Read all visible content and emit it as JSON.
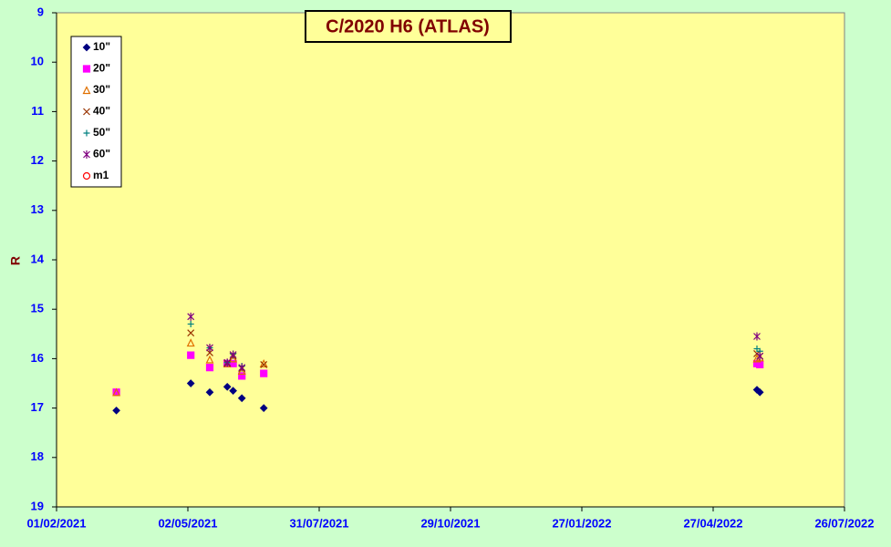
{
  "chart_data": {
    "type": "scatter",
    "title": "C/2020 H6 (ATLAS)",
    "y_label": "R",
    "x": [
      "14/03/2021",
      "04/05/2021",
      "17/05/2021",
      "29/05/2021",
      "02/06/2021",
      "08/06/2021",
      "23/06/2021",
      "27/05/2022",
      "29/05/2022"
    ],
    "xlim": [
      "01/02/2021",
      "26/07/2022"
    ],
    "xticks": [
      "01/02/2021",
      "02/05/2021",
      "31/07/2021",
      "29/10/2021",
      "27/01/2022",
      "27/04/2022",
      "26/07/2022"
    ],
    "ylim": [
      19,
      9
    ],
    "yticks": [
      9,
      10,
      11,
      12,
      13,
      14,
      15,
      16,
      17,
      18,
      19
    ],
    "y_inverted": true,
    "legend": "top-left",
    "grid": false,
    "series": [
      {
        "name": "10\"",
        "color": "#000080",
        "marker": "diamond",
        "values": [
          17.05,
          16.5,
          16.68,
          16.57,
          16.65,
          16.8,
          17.0,
          16.63,
          16.68
        ]
      },
      {
        "name": "20\"",
        "color": "#ff00ff",
        "marker": "square",
        "values": [
          16.68,
          15.93,
          16.18,
          16.1,
          16.1,
          16.35,
          16.3,
          16.1,
          16.12
        ]
      },
      {
        "name": "30\"",
        "color": "#e07000",
        "marker": "triangle",
        "values": [
          16.68,
          15.68,
          16.02,
          16.1,
          16.0,
          16.25,
          16.1,
          16.0,
          15.98
        ]
      },
      {
        "name": "40\"",
        "color": "#993300",
        "marker": "x",
        "values": [
          null,
          15.48,
          15.88,
          16.1,
          15.95,
          16.2,
          16.12,
          15.9,
          15.95
        ]
      },
      {
        "name": "50\"",
        "color": "#008080",
        "marker": "plus",
        "values": [
          null,
          15.3,
          15.78,
          16.08,
          15.9,
          16.15,
          null,
          15.8,
          15.85
        ]
      },
      {
        "name": "60\"",
        "color": "#800080",
        "marker": "star",
        "values": [
          null,
          15.15,
          15.78,
          16.08,
          15.92,
          16.18,
          null,
          15.55,
          15.95
        ]
      },
      {
        "name": "m1",
        "color": "#ff0000",
        "marker": "circle",
        "values": [
          null,
          null,
          null,
          null,
          null,
          null,
          null,
          null,
          null
        ]
      }
    ]
  }
}
